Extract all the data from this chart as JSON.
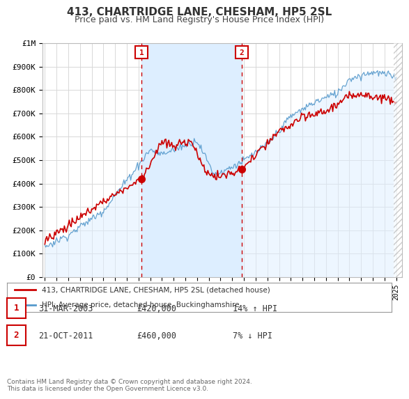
{
  "title": "413, CHARTRIDGE LANE, CHESHAM, HP5 2SL",
  "subtitle": "Price paid vs. HM Land Registry's House Price Index (HPI)",
  "title_fontsize": 11,
  "subtitle_fontsize": 9,
  "ylabel_ticks": [
    "£0",
    "£100K",
    "£200K",
    "£300K",
    "£400K",
    "£500K",
    "£600K",
    "£700K",
    "£800K",
    "£900K",
    "£1M"
  ],
  "ytick_values": [
    0,
    100000,
    200000,
    300000,
    400000,
    500000,
    600000,
    700000,
    800000,
    900000,
    1000000
  ],
  "ylim": [
    0,
    1000000
  ],
  "xlim_start": 1994.8,
  "xlim_end": 2025.5,
  "background_color": "#ffffff",
  "plot_bg_color": "#ffffff",
  "grid_color": "#d8d8d8",
  "hpi_fill_color": "#ddeeff",
  "hpi_line_color": "#5599cc",
  "price_line_color": "#cc0000",
  "marker1_x": 2003.25,
  "marker1_y": 420000,
  "marker2_x": 2011.8,
  "marker2_y": 460000,
  "legend_label1": "413, CHARTRIDGE LANE, CHESHAM, HP5 2SL (detached house)",
  "legend_label2": "HPI: Average price, detached house, Buckinghamshire",
  "table_row1": [
    "1",
    "31-MAR-2003",
    "£420,000",
    "14% ↑ HPI"
  ],
  "table_row2": [
    "2",
    "21-OCT-2011",
    "£460,000",
    "7% ↓ HPI"
  ],
  "footer": "Contains HM Land Registry data © Crown copyright and database right 2024.\nThis data is licensed under the Open Government Licence v3.0.",
  "marker_box_color": "#cc0000"
}
